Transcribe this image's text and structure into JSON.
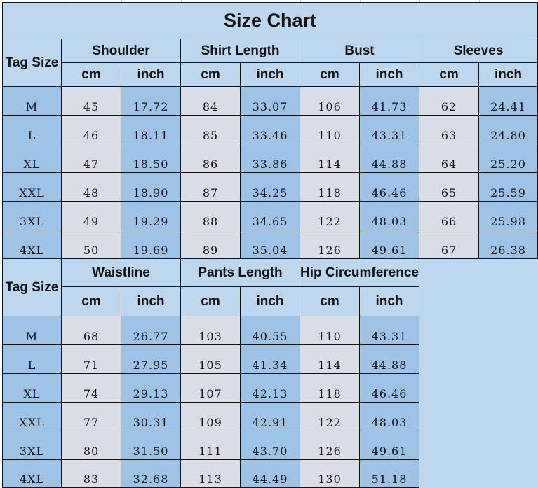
{
  "title": "Size Chart",
  "tag_size_label": "Tag Size",
  "unit_labels": {
    "cm": "cm",
    "inch": "inch"
  },
  "colors": {
    "header": "#bdd7ee",
    "inch_column": "#9dc3e6",
    "cm_column": "#d9dee6",
    "tag_column": "#9dc3e6"
  },
  "table1": {
    "groups": [
      "Shoulder",
      "Shirt Length",
      "Bust",
      "Sleeves"
    ],
    "rows": [
      {
        "size": "M",
        "values": [
          "45",
          "17.72",
          "84",
          "33.07",
          "106",
          "41.73",
          "62",
          "24.41"
        ]
      },
      {
        "size": "L",
        "values": [
          "46",
          "18.11",
          "85",
          "33.46",
          "110",
          "43.31",
          "63",
          "24.80"
        ]
      },
      {
        "size": "XL",
        "values": [
          "47",
          "18.50",
          "86",
          "33.86",
          "114",
          "44.88",
          "64",
          "25.20"
        ]
      },
      {
        "size": "XXL",
        "values": [
          "48",
          "18.90",
          "87",
          "34.25",
          "118",
          "46.46",
          "65",
          "25.59"
        ]
      },
      {
        "size": "3XL",
        "values": [
          "49",
          "19.29",
          "88",
          "34.65",
          "122",
          "48.03",
          "66",
          "25.98"
        ]
      },
      {
        "size": "4XL",
        "values": [
          "50",
          "19.69",
          "89",
          "35.04",
          "126",
          "49.61",
          "67",
          "26.38"
        ]
      }
    ]
  },
  "table2": {
    "groups": [
      "Waistline",
      "Pants Length",
      "Hip Circumference"
    ],
    "rows": [
      {
        "size": "M",
        "values": [
          "68",
          "26.77",
          "103",
          "40.55",
          "110",
          "43.31"
        ]
      },
      {
        "size": "L",
        "values": [
          "71",
          "27.95",
          "105",
          "41.34",
          "114",
          "44.88"
        ]
      },
      {
        "size": "XL",
        "values": [
          "74",
          "29.13",
          "107",
          "42.13",
          "118",
          "46.46"
        ]
      },
      {
        "size": "XXL",
        "values": [
          "77",
          "30.31",
          "109",
          "42.91",
          "122",
          "48.03"
        ]
      },
      {
        "size": "3XL",
        "values": [
          "80",
          "31.50",
          "111",
          "43.70",
          "126",
          "49.61"
        ]
      },
      {
        "size": "4XL",
        "values": [
          "83",
          "32.68",
          "113",
          "44.49",
          "130",
          "51.18"
        ]
      }
    ]
  }
}
